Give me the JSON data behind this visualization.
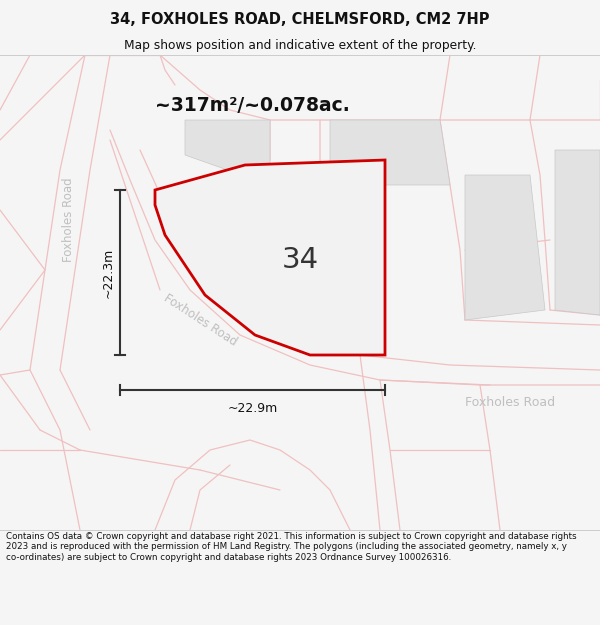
{
  "title": "34, FOXHOLES ROAD, CHELMSFORD, CM2 7HP",
  "subtitle": "Map shows position and indicative extent of the property.",
  "area_text": "~317m²/~0.078ac.",
  "label_34": "34",
  "dim_height": "~22.3m",
  "dim_width": "~22.9m",
  "road_label_diagonal": "Foxholes Road",
  "road_label_horizontal": "Foxholes Road",
  "road_label_vertical": "Foxholes Road",
  "footer_text": "Contains OS data © Crown copyright and database right 2021. This information is subject to Crown copyright and database rights 2023 and is reproduced with the permission of HM Land Registry. The polygons (including the associated geometry, namely x, y co-ordinates) are subject to Crown copyright and database rights 2023 Ordnance Survey 100026316.",
  "bg_color": "#f5f5f5",
  "map_bg": "#ffffff",
  "plot_color_edge": "#cc0000",
  "road_col": "#f0c0c0",
  "building_color": "#e2e2e2",
  "building_edge": "#c8c8c8",
  "dim_line_color": "#333333",
  "road_label_color": "#c0bfbf"
}
